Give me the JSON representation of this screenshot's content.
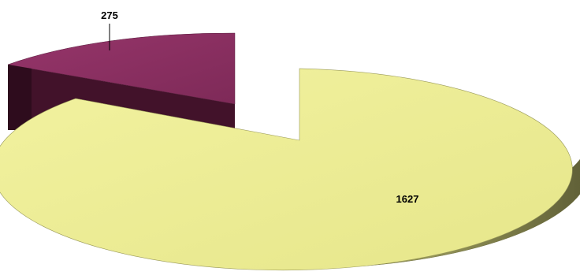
{
  "chart_data": {
    "type": "pie",
    "style": "3d-exploded",
    "title": "",
    "series": [
      {
        "values": [
          1627,
          275
        ],
        "colors": [
          "#EEEE92",
          "#8B3060"
        ]
      }
    ],
    "slices": [
      {
        "value": 1627,
        "label": "1627",
        "color": "#EEEE92"
      },
      {
        "value": 275,
        "label": "275",
        "color": "#8B3060"
      }
    ],
    "legend": "none",
    "data_labels": true
  }
}
